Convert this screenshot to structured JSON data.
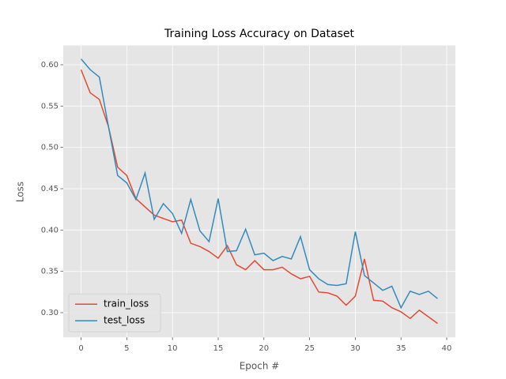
{
  "chart_data": {
    "type": "line",
    "title": "Training Loss Accuracy on Dataset",
    "x_label": "Epoch #",
    "y_label": "Loss",
    "x": [
      0,
      1,
      2,
      3,
      4,
      5,
      6,
      7,
      8,
      9,
      10,
      11,
      12,
      13,
      14,
      15,
      16,
      17,
      18,
      19,
      20,
      21,
      22,
      23,
      24,
      25,
      26,
      27,
      28,
      29,
      30,
      31,
      32,
      33,
      34,
      35,
      36,
      37,
      38,
      39
    ],
    "series": [
      {
        "name": "train_loss",
        "color": "#E24A33",
        "values": [
          0.594,
          0.566,
          0.558,
          0.525,
          0.476,
          0.466,
          0.438,
          0.428,
          0.418,
          0.414,
          0.41,
          0.412,
          0.384,
          0.38,
          0.374,
          0.366,
          0.381,
          0.358,
          0.352,
          0.363,
          0.352,
          0.352,
          0.355,
          0.347,
          0.341,
          0.344,
          0.325,
          0.324,
          0.32,
          0.309,
          0.32,
          0.365,
          0.315,
          0.314,
          0.306,
          0.301,
          0.293,
          0.303,
          0.295,
          0.287
        ]
      },
      {
        "name": "test_loss",
        "color": "#348ABD",
        "values": [
          0.607,
          0.594,
          0.585,
          0.525,
          0.466,
          0.457,
          0.437,
          0.469,
          0.413,
          0.432,
          0.42,
          0.396,
          0.437,
          0.399,
          0.386,
          0.438,
          0.374,
          0.375,
          0.401,
          0.37,
          0.372,
          0.363,
          0.368,
          0.365,
          0.392,
          0.352,
          0.341,
          0.334,
          0.333,
          0.335,
          0.398,
          0.345,
          0.336,
          0.327,
          0.332,
          0.306,
          0.326,
          0.322,
          0.326,
          0.317
        ]
      }
    ],
    "xlim": [
      -1.95,
      40.95
    ],
    "ylim": [
      0.2702,
      0.6233
    ],
    "xticks": [
      0,
      5,
      10,
      15,
      20,
      25,
      30,
      35,
      40
    ],
    "yticks": [
      {
        "value": 0.3,
        "label": "0.30"
      },
      0.35,
      {
        "value": 0.4,
        "label": "0.40"
      },
      0.45,
      {
        "value": 0.5,
        "label": "0.50"
      },
      0.55,
      {
        "value": 0.6,
        "label": "0.60"
      }
    ],
    "grid": true,
    "legend": "lower left"
  }
}
